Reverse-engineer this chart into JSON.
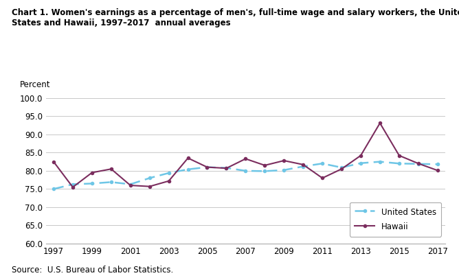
{
  "title_line1": "Chart 1. Women's earnings as a percentage of men's, full-time wage and salary workers, the United",
  "title_line2": "States and Hawaii, 1997–2017  annual averages",
  "ylabel": "Percent",
  "source": "Source:  U.S. Bureau of Labor Statistics.",
  "years": [
    1997,
    1998,
    1999,
    2000,
    2001,
    2002,
    2003,
    2004,
    2005,
    2006,
    2007,
    2008,
    2009,
    2010,
    2011,
    2012,
    2013,
    2014,
    2015,
    2016,
    2017
  ],
  "us_values": [
    75.0,
    76.3,
    76.5,
    76.9,
    76.3,
    78.0,
    79.4,
    80.4,
    81.0,
    80.8,
    80.0,
    79.9,
    80.2,
    81.2,
    82.0,
    80.9,
    82.1,
    82.5,
    82.0,
    81.9,
    81.8
  ],
  "hawaii_values": [
    82.5,
    75.5,
    79.5,
    80.5,
    76.0,
    75.7,
    77.2,
    83.5,
    81.0,
    80.7,
    83.3,
    81.5,
    82.8,
    81.7,
    78.0,
    80.5,
    84.2,
    93.1,
    84.2,
    82.0,
    80.1
  ],
  "us_color": "#6ec6e6",
  "hawaii_color": "#7B2D5E",
  "ylim": [
    60.0,
    100.0
  ],
  "yticks": [
    60.0,
    65.0,
    70.0,
    75.0,
    80.0,
    85.0,
    90.0,
    95.0,
    100.0
  ],
  "xticks": [
    1997,
    1999,
    2001,
    2003,
    2005,
    2007,
    2009,
    2011,
    2013,
    2015,
    2017
  ],
  "legend_labels": [
    "United States",
    "Hawaii"
  ],
  "background_color": "#ffffff",
  "grid_color": "#c8c8c8"
}
